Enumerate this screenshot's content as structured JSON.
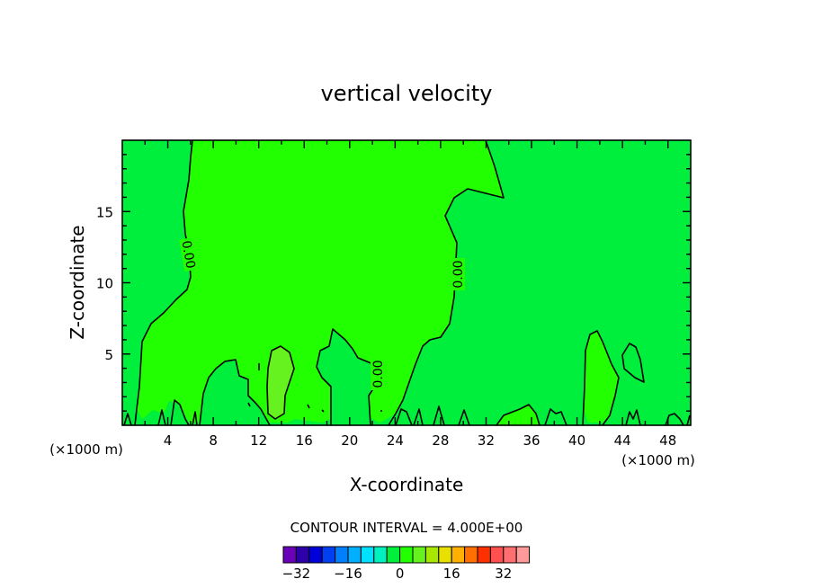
{
  "chart_data": {
    "type": "contour",
    "title": "vertical velocity",
    "xlabel": "X-coordinate",
    "ylabel": "Z-coordinate",
    "x_unit": "(×1000 m)",
    "x_unit_right": "(×1000 m)",
    "xlim": [
      0,
      50
    ],
    "ylim": [
      0,
      20
    ],
    "x_ticks": [
      4,
      8,
      12,
      16,
      20,
      24,
      28,
      32,
      36,
      40,
      44,
      48
    ],
    "x_tick_labels": [
      "4",
      "8",
      "12",
      "16",
      "20",
      "24",
      "28",
      "32",
      "36",
      "40",
      "44",
      "48"
    ],
    "y_ticks": [
      5,
      10,
      15
    ],
    "y_tick_labels": [
      "5",
      "10",
      "15"
    ],
    "contour_interval_text": "CONTOUR INTERVAL = 4.000E+00",
    "contour_labels": [
      "0.00",
      "0.00",
      "0.00"
    ],
    "colors": {
      "background_field": "#00ee3c",
      "zero_to_four": "#22ff00",
      "four_to_eight": "#66f21e"
    },
    "colorbar": {
      "colors": [
        "#6a00b8",
        "#2b00a8",
        "#0000d8",
        "#0040f0",
        "#0080ff",
        "#00b0ff",
        "#00e0ff",
        "#00f0c0",
        "#00ee3c",
        "#22ff00",
        "#66f21e",
        "#a8e800",
        "#e8e000",
        "#ffb000",
        "#ff7000",
        "#ff3000",
        "#ff5050",
        "#ff6f6f",
        "#ff9a9a"
      ],
      "tick_values": [
        -32,
        -16,
        0,
        16,
        32
      ],
      "tick_labels": [
        "−32",
        "−16",
        "0",
        "16",
        "32"
      ]
    }
  }
}
